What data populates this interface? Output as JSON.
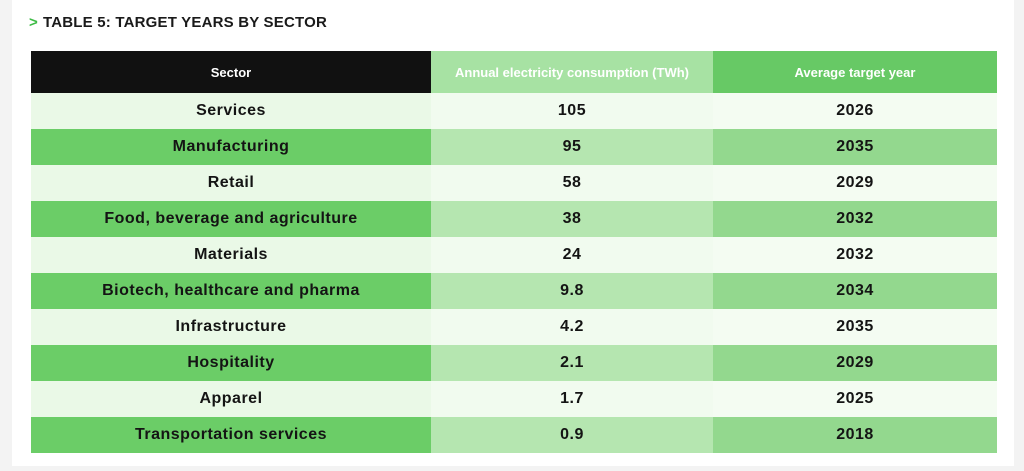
{
  "title_arrow": ">",
  "title": "TABLE 5: TARGET YEARS BY SECTOR",
  "table": {
    "headers": {
      "sector": "Sector",
      "consumption": "Annual electricity consumption (TWh)",
      "year": "Average target year"
    },
    "rows": [
      {
        "sector": "Services",
        "consumption": "105",
        "year": "2026"
      },
      {
        "sector": "Manufacturing",
        "consumption": "95",
        "year": "2035"
      },
      {
        "sector": "Retail",
        "consumption": "58",
        "year": "2029"
      },
      {
        "sector": "Food, beverage and agriculture",
        "consumption": "38",
        "year": "2032"
      },
      {
        "sector": "Materials",
        "consumption": "24",
        "year": "2032"
      },
      {
        "sector": "Biotech, healthcare and pharma",
        "consumption": "9.8",
        "year": "2034"
      },
      {
        "sector": "Infrastructure",
        "consumption": "4.2",
        "year": "2035"
      },
      {
        "sector": "Hospitality",
        "consumption": "2.1",
        "year": "2029"
      },
      {
        "sector": "Apparel",
        "consumption": "1.7",
        "year": "2025"
      },
      {
        "sector": "Transportation services",
        "consumption": "0.9",
        "year": "2018"
      }
    ]
  },
  "colors": {
    "header_dark": "#111111",
    "accent_green": "#67c965",
    "title_arrow": "#3dbb45"
  }
}
